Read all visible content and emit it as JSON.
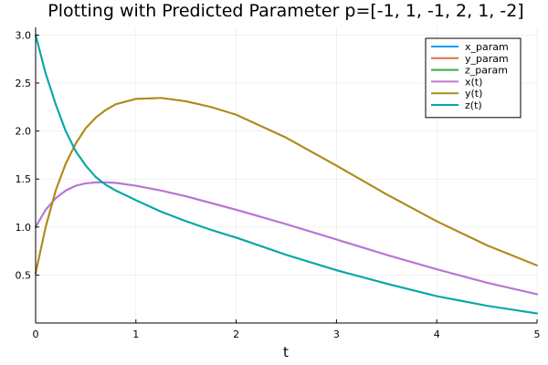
{
  "chart_data": {
    "type": "line",
    "title": "Plotting with Predicted Parameter p=[-1, 1, -1, 2, 1, -2]",
    "xlabel": "t",
    "ylabel": "",
    "xlim": [
      0,
      5
    ],
    "ylim": [
      0.0,
      3.08
    ],
    "xticks": [
      0,
      1,
      2,
      3,
      4,
      5
    ],
    "xtick_labels": [
      "0",
      "1",
      "2",
      "3",
      "4",
      "5"
    ],
    "yticks": [
      0.5,
      1.0,
      1.5,
      2.0,
      2.5,
      3.0
    ],
    "ytick_labels": [
      "0.5",
      "1.0",
      "1.5",
      "2.0",
      "2.5",
      "3.0"
    ],
    "grid": true,
    "legend_position": "top-right",
    "x": [
      0,
      0.1,
      0.2,
      0.3,
      0.4,
      0.5,
      0.6,
      0.7,
      0.8,
      1.0,
      1.25,
      1.5,
      1.75,
      2.0,
      2.5,
      3.0,
      3.5,
      4.0,
      4.5,
      5.0
    ],
    "series": [
      {
        "name": "x_param",
        "color": "#009AFA",
        "values": [
          1.0,
          1.18,
          1.3,
          1.38,
          1.43,
          1.455,
          1.465,
          1.465,
          1.46,
          1.43,
          1.38,
          1.32,
          1.25,
          1.18,
          1.03,
          0.87,
          0.71,
          0.56,
          0.42,
          0.3
        ]
      },
      {
        "name": "y_param",
        "color": "#E36F47",
        "values": [
          0.52,
          1.0,
          1.38,
          1.66,
          1.87,
          2.03,
          2.14,
          2.22,
          2.28,
          2.335,
          2.345,
          2.31,
          2.25,
          2.17,
          1.93,
          1.64,
          1.34,
          1.06,
          0.81,
          0.6
        ]
      },
      {
        "name": "z_param",
        "color": "#3EA44E",
        "values": [
          3.0,
          2.6,
          2.28,
          2.0,
          1.79,
          1.64,
          1.52,
          1.44,
          1.38,
          1.28,
          1.16,
          1.06,
          0.97,
          0.89,
          0.71,
          0.55,
          0.41,
          0.28,
          0.18,
          0.1
        ]
      },
      {
        "name": "x(t)",
        "color": "#C371D2",
        "values": [
          1.0,
          1.18,
          1.3,
          1.38,
          1.43,
          1.455,
          1.465,
          1.465,
          1.46,
          1.43,
          1.38,
          1.32,
          1.25,
          1.18,
          1.03,
          0.87,
          0.71,
          0.56,
          0.42,
          0.3
        ]
      },
      {
        "name": "y(t)",
        "color": "#AC8D18",
        "values": [
          0.52,
          1.0,
          1.38,
          1.66,
          1.87,
          2.03,
          2.14,
          2.22,
          2.28,
          2.335,
          2.345,
          2.31,
          2.25,
          2.17,
          1.93,
          1.64,
          1.34,
          1.06,
          0.81,
          0.6
        ]
      },
      {
        "name": "z(t)",
        "color": "#00A9AD",
        "values": [
          3.0,
          2.6,
          2.28,
          2.0,
          1.79,
          1.64,
          1.52,
          1.44,
          1.38,
          1.28,
          1.16,
          1.06,
          0.97,
          0.89,
          0.71,
          0.55,
          0.41,
          0.28,
          0.18,
          0.1
        ]
      }
    ]
  }
}
